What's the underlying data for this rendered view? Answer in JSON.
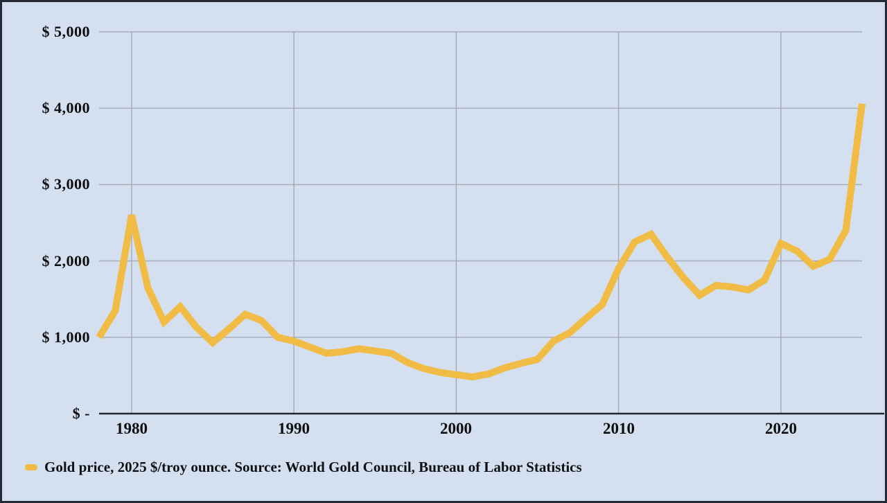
{
  "chart_data": {
    "type": "line",
    "title": "",
    "xlabel": "",
    "ylabel": "",
    "grid": true,
    "legend_position": "bottom-left",
    "xlim": [
      1978,
      2025
    ],
    "ylim": [
      0,
      5000
    ],
    "years": [
      1978,
      1979,
      1980,
      1981,
      1982,
      1983,
      1984,
      1985,
      1986,
      1987,
      1988,
      1989,
      1990,
      1991,
      1992,
      1993,
      1994,
      1995,
      1996,
      1997,
      1998,
      1999,
      2000,
      2001,
      2002,
      2003,
      2004,
      2005,
      2006,
      2007,
      2008,
      2009,
      2010,
      2011,
      2012,
      2013,
      2014,
      2015,
      2016,
      2017,
      2018,
      2019,
      2020,
      2021,
      2022,
      2023,
      2024,
      2025
    ],
    "series": [
      {
        "name": "Gold price, 2025 $/troy ounce",
        "color": "#F0BC45",
        "values": [
          1000,
          1350,
          2600,
          1650,
          1200,
          1400,
          1130,
          930,
          1110,
          1300,
          1220,
          1000,
          950,
          870,
          790,
          810,
          850,
          820,
          790,
          670,
          590,
          540,
          510,
          480,
          520,
          600,
          660,
          710,
          950,
          1060,
          1250,
          1430,
          1900,
          2250,
          2350,
          2050,
          1780,
          1550,
          1680,
          1660,
          1620,
          1750,
          2230,
          2130,
          1930,
          2020,
          2400,
          4060
        ]
      }
    ],
    "x_ticks": [
      {
        "v": 1980,
        "label": "1980"
      },
      {
        "v": 1990,
        "label": "1990"
      },
      {
        "v": 2000,
        "label": "2000"
      },
      {
        "v": 2010,
        "label": "2010"
      },
      {
        "v": 2020,
        "label": "2020"
      }
    ],
    "y_ticks": [
      {
        "v": 0,
        "label": "$ -"
      },
      {
        "v": 1000,
        "label": "$ 1,000"
      },
      {
        "v": 2000,
        "label": "$ 2,000"
      },
      {
        "v": 3000,
        "label": "$ 3,000"
      },
      {
        "v": 4000,
        "label": "$ 4,000"
      },
      {
        "v": 5000,
        "label": "$ 5,000"
      }
    ]
  },
  "legend": {
    "label": "Gold price, 2025 $/troy ounce. Source: World Gold Council, Bureau of Labor Statistics",
    "marker_color": "#F0BC45"
  },
  "colors": {
    "background": "#D4E0EF",
    "gridline": "#A2A9B4",
    "axis": "#21262E",
    "line": "#F0BC45",
    "text": "#0E0E10",
    "frame": "#242933"
  }
}
